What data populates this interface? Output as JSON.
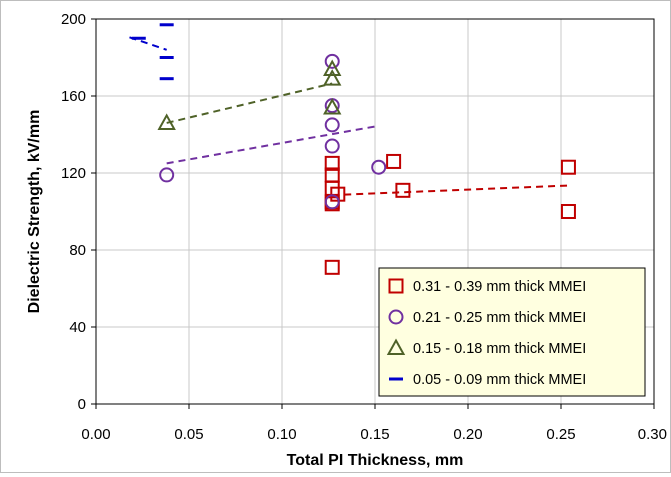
{
  "chart_data": {
    "type": "scatter",
    "title": "",
    "xlabel": "Total PI Thickness, mm",
    "ylabel": "Dielectric Strength, kV/mm",
    "xlim": [
      0,
      0.3
    ],
    "ylim": [
      0,
      200
    ],
    "x_ticks": [
      "0.00",
      "0.05",
      "0.10",
      "0.15",
      "0.20",
      "0.25",
      "0.30"
    ],
    "y_ticks": [
      "0",
      "40",
      "80",
      "120",
      "160",
      "200"
    ],
    "grid": true,
    "legend_position": "bottom-right",
    "series": [
      {
        "name": "0.31 - 0.39 mm thick MMEI",
        "marker": "square",
        "color": "#c00000",
        "points": [
          [
            0.127,
            71
          ],
          [
            0.127,
            104
          ],
          [
            0.127,
            105
          ],
          [
            0.127,
            112
          ],
          [
            0.127,
            119
          ],
          [
            0.127,
            125
          ],
          [
            0.13,
            109
          ],
          [
            0.16,
            126
          ],
          [
            0.165,
            111
          ],
          [
            0.254,
            123
          ],
          [
            0.254,
            100
          ]
        ],
        "trend": [
          [
            0.127,
            108.5
          ],
          [
            0.254,
            113.5
          ]
        ]
      },
      {
        "name": "0.21 - 0.25 mm thick MMEI",
        "marker": "circle",
        "color": "#7030a0",
        "points": [
          [
            0.038,
            119
          ],
          [
            0.127,
            178
          ],
          [
            0.127,
            155
          ],
          [
            0.127,
            145
          ],
          [
            0.127,
            134
          ],
          [
            0.127,
            105
          ],
          [
            0.152,
            123
          ]
        ],
        "trend": [
          [
            0.038,
            125
          ],
          [
            0.152,
            144.5
          ]
        ]
      },
      {
        "name": "0.15 - 0.18 mm thick MMEI",
        "marker": "triangle",
        "color": "#4f6228",
        "points": [
          [
            0.038,
            146
          ],
          [
            0.127,
            174
          ],
          [
            0.127,
            169
          ],
          [
            0.127,
            154
          ]
        ],
        "trend": [
          [
            0.038,
            146
          ],
          [
            0.127,
            166.5
          ]
        ]
      },
      {
        "name": "0.05 - 0.09 mm thick MMEI",
        "marker": "dash",
        "color": "#0000cc",
        "points": [
          [
            0.023,
            190
          ],
          [
            0.038,
            197
          ],
          [
            0.038,
            180
          ],
          [
            0.038,
            169
          ]
        ],
        "trend": [
          [
            0.018,
            190.5
          ],
          [
            0.038,
            184
          ]
        ]
      }
    ]
  }
}
